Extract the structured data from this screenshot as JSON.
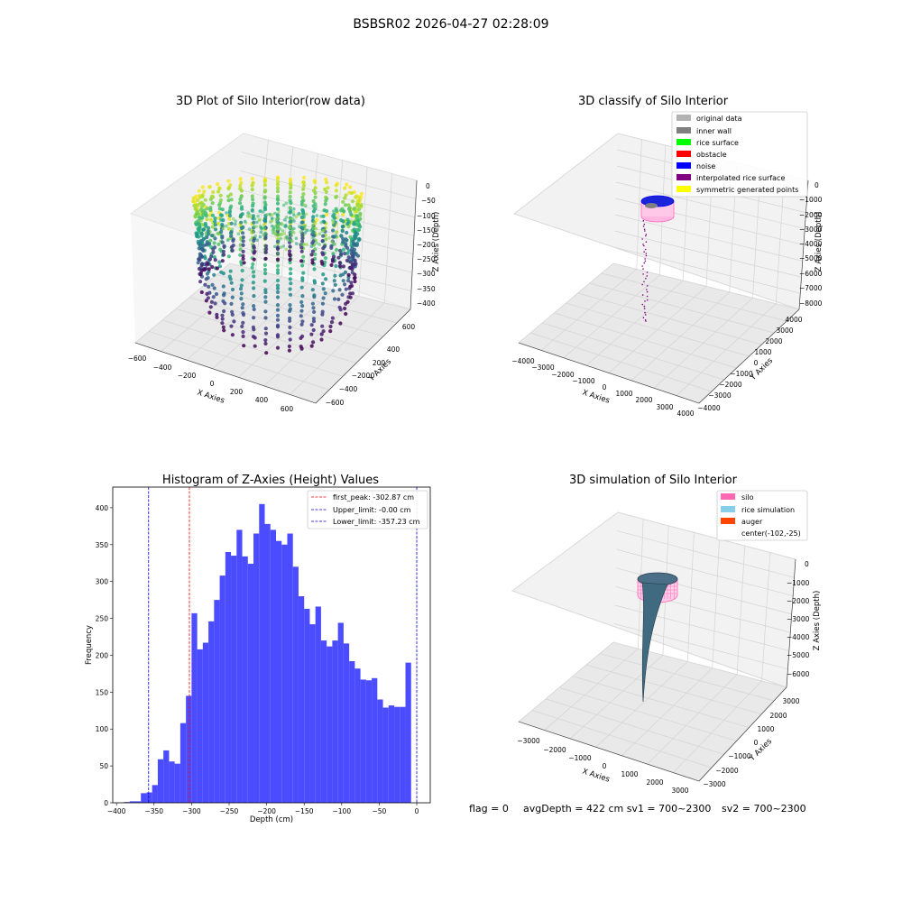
{
  "figure": {
    "suptitle": "BSBSR02 2026-04-27 02:28:09",
    "footer": {
      "flag": "flag = 0",
      "avg": "avgDepth = 422 cm  sv1 = 700~2300",
      "sv2": "sv2 = 700~2300"
    }
  },
  "chart_data": [
    {
      "type": "scatter",
      "title": "3D Plot of Silo Interior(row data)",
      "xlabel": "X Axies",
      "ylabel": "Y Axies",
      "zlabel": "Z Axies (Depth)",
      "xticks": [
        "−600",
        "−400",
        "−200",
        "0",
        "200",
        "400",
        "600"
      ],
      "yticks": [
        "600",
        "400",
        "200",
        "0",
        "−200",
        "−400",
        "−600"
      ],
      "zticks": [
        "0",
        "−50",
        "−100",
        "−150",
        "−200",
        "−250",
        "−300",
        "−350",
        "−400"
      ],
      "xlim": [
        -600,
        600
      ],
      "ylim": [
        -600,
        600
      ],
      "zlim": [
        -400,
        0
      ],
      "colormap": "viridis",
      "colors": {
        "pane": "#f2f2f2",
        "grid": "#d9d9d9"
      }
    },
    {
      "type": "scatter",
      "title": "3D classify of Silo Interior",
      "xlabel": "X Axies",
      "ylabel": "Y Axies",
      "zlabel": "Z Axies (Depth)",
      "xticks": [
        "−4000",
        "−3000",
        "−2000",
        "−1000",
        "0",
        "1000",
        "2000",
        "3000",
        "4000"
      ],
      "yticks": [
        "4000",
        "3000",
        "2000",
        "1000",
        "0",
        "−1000",
        "−2000",
        "−3000",
        "−4000"
      ],
      "zticks": [
        "0",
        "−1000",
        "−2000",
        "−3000",
        "−4000",
        "−5000",
        "−6000",
        "−7000",
        "−8000"
      ],
      "legend": {
        "position": "upper right",
        "items": [
          {
            "label": "original data",
            "color": "#b3b3b3"
          },
          {
            "label": "inner wall",
            "color": "#808080"
          },
          {
            "label": "rice surface",
            "color": "#00ff00"
          },
          {
            "label": "obstacle",
            "color": "#ff0000"
          },
          {
            "label": "noise",
            "color": "#0000ff"
          },
          {
            "label": "interpolated rice surface",
            "color": "#800080"
          },
          {
            "label": "symmetric generated points",
            "color": "#ffff00"
          }
        ]
      }
    },
    {
      "type": "bar",
      "title": "Histogram of Z-Axies (Height) Values",
      "xlabel": "Depth (cm)",
      "ylabel": "Frequency",
      "xlim": [
        -405,
        18
      ],
      "ylim": [
        0,
        428
      ],
      "xticks": [
        -400,
        -350,
        -300,
        -250,
        -200,
        -150,
        -100,
        -50,
        0
      ],
      "yticks": [
        0,
        50,
        100,
        150,
        200,
        250,
        300,
        350,
        400
      ],
      "bin_width": 7.5,
      "bin_starts": [
        -397.5,
        -390,
        -382.5,
        -375,
        -367.5,
        -360,
        -352.5,
        -345,
        -337.5,
        -330,
        -322.5,
        -315,
        -307.5,
        -300,
        -292.5,
        -285,
        -277.5,
        -270,
        -262.5,
        -255,
        -247.5,
        -240,
        -232.5,
        -225,
        -217.5,
        -210,
        -202.5,
        -195,
        -187.5,
        -180,
        -172.5,
        -165,
        -157.5,
        -150,
        -142.5,
        -135,
        -127.5,
        -120,
        -112.5,
        -105,
        -97.5,
        -90,
        -82.5,
        -75,
        -67.5,
        -60,
        -52.5,
        -45,
        -37.5,
        -30,
        -22.5,
        -15,
        -7.5
      ],
      "values": [
        0,
        1,
        2,
        2,
        13,
        14,
        24,
        59,
        71,
        56,
        53,
        108,
        145,
        257,
        208,
        217,
        246,
        275,
        308,
        340,
        335,
        370,
        334,
        324,
        365,
        405,
        378,
        370,
        355,
        350,
        365,
        320,
        280,
        263,
        242,
        266,
        220,
        212,
        220,
        244,
        216,
        192,
        182,
        167,
        166,
        169,
        140,
        129,
        132,
        130,
        130,
        190,
        0
      ],
      "bar_color": "#4b4bff",
      "vlines": [
        {
          "label": "first_peak: -302.87 cm",
          "x": -302.87,
          "color": "#ff0000"
        },
        {
          "label": "Upper_limit: -0.00 cm",
          "x": 0,
          "color": "#0000cc"
        },
        {
          "label": "Lower_limit: -357.23 cm",
          "x": -357.23,
          "color": "#0000cc"
        }
      ],
      "legend": {
        "position": "upper right"
      }
    },
    {
      "type": "area",
      "title": "3D simulation of Silo Interior",
      "xlabel": "X Axies",
      "ylabel": "Y Axies",
      "zlabel": "Z Axies (Depth)",
      "xticks": [
        "−3000",
        "−2000",
        "−1000",
        "0",
        "1000",
        "2000",
        "3000"
      ],
      "yticks": [
        "3000",
        "2000",
        "1000",
        "0",
        "−1000",
        "−2000",
        "−3000"
      ],
      "zticks": [
        "0",
        "−1000",
        "−2000",
        "−3000",
        "−4000",
        "−5000",
        "−6000"
      ],
      "legend": {
        "position": "upper right",
        "items": [
          {
            "label": "silo",
            "color": "#ff69b4"
          },
          {
            "label": "rice simulation",
            "color": "#87ceeb"
          },
          {
            "label": "auger",
            "color": "#ff4500"
          },
          {
            "label": "center(-102,-25)",
            "color": ""
          }
        ]
      }
    }
  ]
}
